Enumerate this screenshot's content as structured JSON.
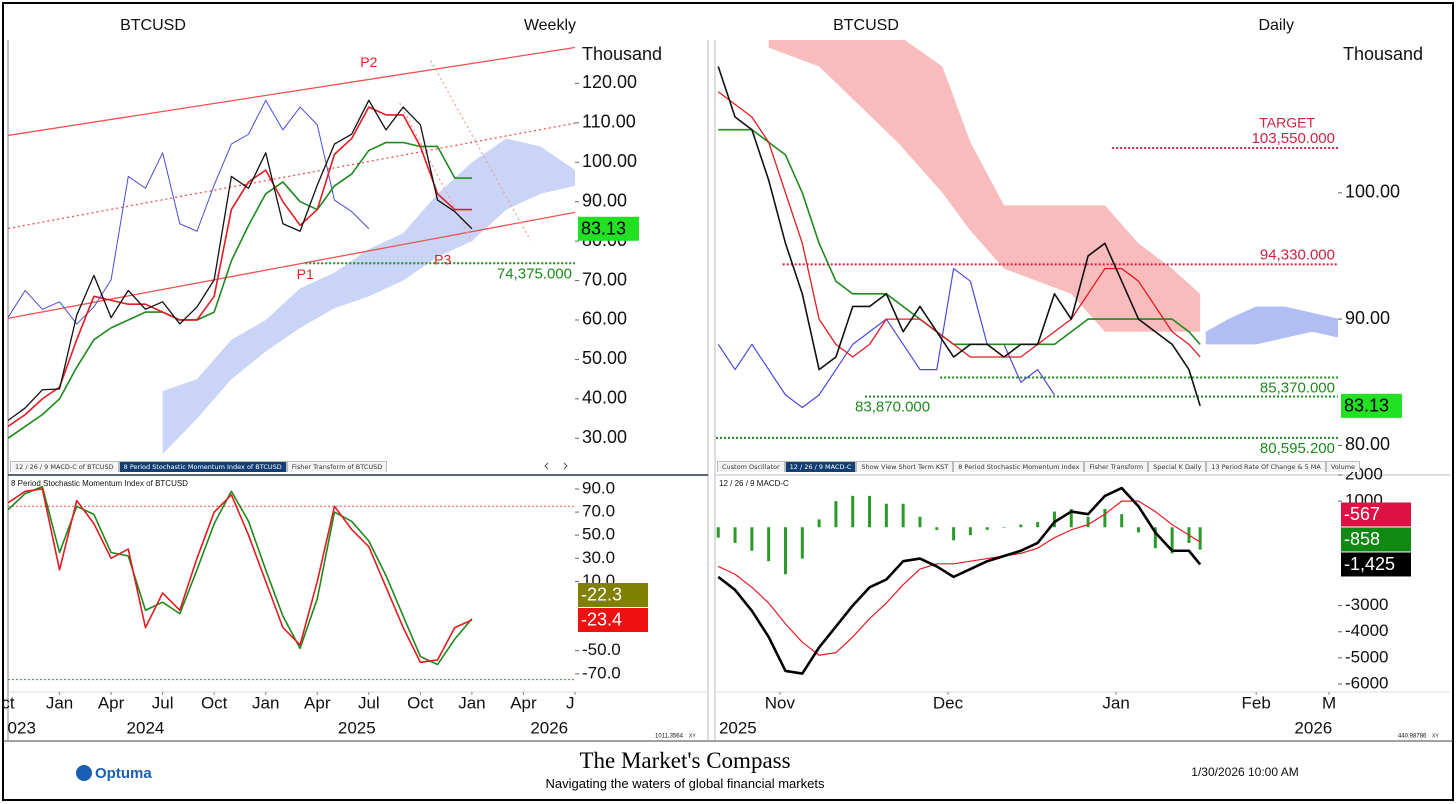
{
  "chart_data": [
    {
      "type": "line",
      "title": "BTCUSD",
      "interval": "Weekly",
      "unit": "Thousand",
      "xlim": [
        0,
        33
      ],
      "ylim": [
        25,
        131
      ],
      "yticks": [
        {
          "value": 30,
          "label": "30.00"
        },
        {
          "value": 40,
          "label": "40.00"
        },
        {
          "value": 50,
          "label": "50.00"
        },
        {
          "value": 60,
          "label": "60.00"
        },
        {
          "value": 70,
          "label": "70.00"
        },
        {
          "value": 80,
          "label": "80.00"
        },
        {
          "value": 90,
          "label": "90.00"
        },
        {
          "value": 100,
          "label": "100.00"
        },
        {
          "value": 110,
          "label": "110.00"
        },
        {
          "value": 120,
          "label": "120.00"
        }
      ],
      "bands": [
        {
          "color": "#c9d4f6",
          "x": [
            9,
            11,
            13,
            15,
            17,
            19,
            21,
            23,
            25,
            27,
            29,
            31,
            33
          ],
          "upper": [
            42,
            45,
            55,
            60,
            68,
            72,
            78,
            82,
            92,
            100,
            106,
            104,
            98
          ],
          "lower": [
            26,
            35,
            45,
            52,
            58,
            63,
            66,
            70,
            76,
            80,
            88,
            92,
            94
          ]
        }
      ],
      "lines": [
        {
          "color": "#f05050",
          "x": [
            0,
            33
          ],
          "y": [
            106.8,
            129.1
          ]
        },
        {
          "color": "#f05050",
          "x": [
            0,
            33
          ],
          "y": [
            83.2,
            109.9
          ],
          "dash": true
        },
        {
          "color": "#f05050",
          "x": [
            0,
            33
          ],
          "y": [
            60.4,
            87.3
          ]
        },
        {
          "color": "#f7a0a0",
          "x": [
            24.6,
            30.4
          ],
          "y": [
            125.8,
            80.2
          ],
          "dash": true
        },
        {
          "color": "#f7a0a0",
          "x": [
            22.8,
            27
          ],
          "y": [
            115,
            80
          ],
          "dash": true
        }
      ],
      "levels": [
        {
          "value": 74.375,
          "label": "74,375.000",
          "color": "#1c8a1c",
          "from": 17.3,
          "label_pos": "below-end"
        }
      ],
      "series": [
        {
          "color": "#4b4bd8",
          "width": 1,
          "values": [
            60.6,
            67.5,
            62.7,
            64.6,
            59,
            63.3,
            70.2,
            96.4,
            93.4,
            102.4,
            84.4,
            82.5,
            94.2,
            104.6,
            107.1,
            115.7,
            108.2,
            114,
            109.5,
            90.4,
            87.5,
            83.13
          ]
        },
        {
          "color": "#1c8a1c",
          "width": 1.6,
          "values": [
            30,
            33,
            36,
            40,
            48,
            55,
            58,
            60,
            62,
            62,
            60,
            60,
            62,
            75,
            84,
            92,
            95,
            90,
            88,
            94,
            97,
            103,
            105,
            105,
            104,
            104,
            96,
            96
          ]
        },
        {
          "color": "#e31b23",
          "width": 1.6,
          "values": [
            33,
            36,
            40,
            43,
            55,
            66,
            65,
            64,
            64,
            62,
            60,
            60,
            66,
            88,
            95,
            98,
            90,
            84,
            88,
            102,
            106,
            114,
            112,
            112,
            104,
            92,
            88,
            88
          ]
        },
        {
          "color": "#111111",
          "width": 1.3,
          "values": [
            34.5,
            37.7,
            42.3,
            42.5,
            61.2,
            71.3,
            60.6,
            67.5,
            62.7,
            64.6,
            59,
            63.3,
            70.2,
            96.4,
            93.4,
            102.4,
            84.4,
            82.5,
            94.2,
            104.6,
            107.1,
            115.7,
            108.2,
            114,
            109.5,
            90.4,
            87.5,
            83.13
          ]
        }
      ],
      "annotations": [
        {
          "text": "P1",
          "x": 17.3,
          "y": 74.4,
          "pos": "below"
        },
        {
          "text": "P2",
          "x": 21,
          "y": 122,
          "pos": "above"
        },
        {
          "text": "P3",
          "x": 25.3,
          "y": 78,
          "pos": "below"
        }
      ],
      "price_labels": [
        {
          "value": 83.13,
          "color": "#22e022",
          "text_color": "#000000"
        }
      ]
    },
    {
      "type": "line",
      "title": "8 Period Stochastic Momentum Index of BTCUSD",
      "xlim": [
        0,
        33
      ],
      "ylim": [
        -84,
        99.5
      ],
      "yticks": [
        {
          "value": 90,
          "label": "90.0"
        },
        {
          "value": 70,
          "label": "70.0"
        },
        {
          "value": 50,
          "label": "50.0"
        },
        {
          "value": 30,
          "label": "30.0"
        },
        {
          "value": 10,
          "label": "10.0"
        },
        {
          "value": -50,
          "label": "-50.0"
        },
        {
          "value": -70,
          "label": "-70.0"
        }
      ],
      "levels": [
        {
          "value": 75,
          "color": "#f05050",
          "from": 0
        },
        {
          "value": -75,
          "color": "#2ca02c",
          "from": 0
        }
      ],
      "series": [
        {
          "color": "#1c8a1c",
          "width": 1.6,
          "values": [
            72,
            86,
            92,
            35,
            75,
            68,
            35,
            32,
            -15,
            -8,
            -18,
            20,
            60,
            88,
            62,
            20,
            -20,
            -48,
            -5,
            70,
            62,
            45,
            15,
            -20,
            -55,
            -62,
            -40,
            -22.3
          ]
        },
        {
          "color": "#e31b23",
          "width": 1.6,
          "values": [
            78,
            88,
            90,
            20,
            80,
            60,
            30,
            38,
            -30,
            0,
            -15,
            30,
            70,
            85,
            50,
            10,
            -30,
            -45,
            10,
            75,
            55,
            40,
            5,
            -30,
            -60,
            -58,
            -30,
            -23.4
          ]
        }
      ],
      "price_labels": [
        {
          "value": -22.3,
          "color": "#7f7f00",
          "text_color": "#ffffff"
        },
        {
          "value": -23.4,
          "color": "#ee1111",
          "text_color": "#ffffff"
        }
      ],
      "xticks": [
        {
          "value": 0,
          "label": "ct"
        },
        {
          "value": 3,
          "label": "Jan"
        },
        {
          "value": 6,
          "label": "Apr"
        },
        {
          "value": 9,
          "label": "Jul"
        },
        {
          "value": 12,
          "label": "Oct"
        },
        {
          "value": 15,
          "label": "Jan"
        },
        {
          "value": 18,
          "label": "Apr"
        },
        {
          "value": 21,
          "label": "Jul"
        },
        {
          "value": 24,
          "label": "Oct"
        },
        {
          "value": 27,
          "label": "Jan"
        },
        {
          "value": 30,
          "label": "Apr"
        },
        {
          "value": 33,
          "label": "Ju"
        }
      ],
      "year_ticks": [
        {
          "value": 0.8,
          "label": "023"
        },
        {
          "value": 8,
          "label": "2024"
        },
        {
          "value": 20.3,
          "label": "2025"
        },
        {
          "value": 31.5,
          "label": "2026"
        }
      ]
    },
    {
      "type": "line",
      "title": "BTCUSD",
      "interval": "Daily",
      "unit": "Thousand",
      "xlim": [
        -11.4,
        99.6
      ],
      "ylim": [
        79,
        112.1
      ],
      "x": [
        -11,
        -8,
        -5,
        -2,
        1,
        4,
        7,
        10,
        13,
        16,
        19,
        22,
        25,
        28,
        31,
        34,
        37,
        40,
        43,
        46,
        49,
        52,
        55,
        58,
        61,
        64,
        67,
        70,
        73,
        75
      ],
      "yticks": [
        {
          "value": 80,
          "label": "80.00"
        },
        {
          "value": 90,
          "label": "90.00"
        },
        {
          "value": 100,
          "label": "100.00"
        }
      ],
      "bands": [
        {
          "color": "#f9bcbc",
          "x": [
            -2,
            7,
            14,
            21,
            29,
            34,
            40,
            46,
            52,
            58,
            64,
            70,
            75
          ],
          "upper": [
            112.5,
            112.5,
            112.5,
            112.5,
            110,
            104,
            99,
            99,
            99,
            99,
            96,
            94,
            92
          ],
          "lower": [
            111.5,
            110,
            107,
            104,
            100,
            97,
            94,
            93,
            92,
            89,
            89,
            89,
            89
          ]
        },
        {
          "color": "#b0bef3",
          "x": [
            76,
            80,
            85,
            90,
            95,
            100
          ],
          "upper": [
            89,
            90,
            91,
            91,
            90.5,
            90
          ],
          "lower": [
            88,
            88,
            88,
            88.5,
            89,
            88.5
          ]
        }
      ],
      "levels": [
        {
          "value": 103.55,
          "label": "103,550.000",
          "note": "TARGET",
          "color": "#cc2244",
          "from": 59.3,
          "label_pos": "above-end"
        },
        {
          "value": 94.33,
          "label": "94,330.000",
          "color": "#cc2244",
          "from": 0.5,
          "label_pos": "above-end"
        },
        {
          "value": 85.37,
          "label": "85,370.000",
          "color": "#1c8a1c",
          "from": 28.6,
          "label_pos": "below-end"
        },
        {
          "value": 83.87,
          "label": "83,870.000",
          "color": "#1c8a1c",
          "from": 15.2,
          "label_pos": "below-start"
        },
        {
          "value": 80.595,
          "label": "80,595.200",
          "color": "#1c8a1c",
          "from": -11.4,
          "label_pos": "below-end"
        }
      ],
      "series": [
        {
          "color": "#4b4bd8",
          "width": 1.2,
          "values": [
            88,
            86,
            88,
            86,
            84,
            83,
            84,
            86,
            88,
            89,
            90,
            88,
            86,
            86,
            94,
            93,
            88,
            88,
            85,
            86,
            84,
            null,
            null,
            null,
            null,
            null,
            null,
            null,
            null,
            null
          ]
        },
        {
          "color": "#1c8a1c",
          "width": 1.6,
          "values": [
            105,
            105,
            105,
            104,
            103,
            100,
            96,
            93,
            92,
            92,
            92,
            91,
            90,
            89,
            88,
            88,
            88,
            88,
            88,
            88,
            88,
            89,
            90,
            90,
            90,
            90,
            90,
            90,
            89,
            88
          ]
        },
        {
          "color": "#e31b23",
          "width": 1.3,
          "values": [
            108,
            107,
            106,
            104,
            100,
            96,
            90,
            88,
            87,
            88,
            90,
            90,
            90,
            89,
            88,
            87,
            87,
            87,
            87,
            88,
            89,
            90,
            92,
            94,
            94,
            93,
            91,
            89,
            88,
            87
          ]
        },
        {
          "color": "#111111",
          "width": 1.6,
          "values": [
            110,
            106,
            105,
            101,
            96,
            92,
            86,
            87,
            91,
            91,
            92,
            89,
            91,
            89,
            87,
            88,
            88,
            87,
            88,
            88,
            92,
            90,
            95,
            96,
            93,
            90,
            89,
            88,
            86,
            83.13
          ]
        }
      ],
      "price_labels": [
        {
          "value": 83.13,
          "color": "#22e022",
          "text_color": "#000000"
        }
      ]
    },
    {
      "type": "line",
      "title": "12 / 26 / 9 MACD-C",
      "xlim": [
        -11.4,
        99.6
      ],
      "ylim": [
        -6230,
        1885
      ],
      "x": [
        -11,
        -8,
        -5,
        -2,
        1,
        4,
        7,
        10,
        13,
        16,
        19,
        22,
        25,
        28,
        31,
        34,
        37,
        40,
        43,
        46,
        49,
        52,
        55,
        58,
        61,
        64,
        67,
        70,
        73,
        75
      ],
      "yticks": [
        2000,
        1000,
        -3000,
        -4000,
        -5000,
        -6000
      ],
      "series": [
        {
          "kind": "bar",
          "color": "#2a9a2a",
          "values": [
            -400,
            -600,
            -900,
            -1300,
            -1800,
            -1200,
            300,
            1000,
            1200,
            1200,
            900,
            900,
            400,
            -100,
            -500,
            -300,
            -100,
            0,
            100,
            200,
            600,
            700,
            400,
            700,
            500,
            -200,
            -800,
            -1000,
            -600,
            -858
          ]
        },
        {
          "color": "#e31b23",
          "width": 1.2,
          "values": [
            -1500,
            -1800,
            -2300,
            -2900,
            -3700,
            -4400,
            -4900,
            -4800,
            -4200,
            -3500,
            -2900,
            -2200,
            -1600,
            -1400,
            -1400,
            -1300,
            -1200,
            -1100,
            -1000,
            -800,
            -400,
            -100,
            100,
            500,
            1000,
            1000,
            600,
            100,
            -300,
            -567
          ]
        },
        {
          "color": "#000000",
          "width": 2.6,
          "values": [
            -1900,
            -2400,
            -3200,
            -4200,
            -5500,
            -5600,
            -4600,
            -3800,
            -3000,
            -2300,
            -2000,
            -1300,
            -1200,
            -1500,
            -1900,
            -1600,
            -1300,
            -1100,
            -900,
            -600,
            200,
            600,
            500,
            1200,
            1500,
            800,
            -200,
            -900,
            -900,
            -1425
          ]
        }
      ],
      "price_labels": [
        {
          "value": -567,
          "color": "#dd1144",
          "text_color": "#ffffff"
        },
        {
          "value": -858,
          "color": "#118811",
          "text_color": "#ffffff"
        },
        {
          "value": -1425,
          "label": "-1,425",
          "color": "#000000",
          "text_color": "#ffffff"
        }
      ],
      "xticks": [
        {
          "value": 0,
          "label": "Nov"
        },
        {
          "value": 30,
          "label": "Dec"
        },
        {
          "value": 60,
          "label": "Jan"
        },
        {
          "value": 85,
          "label": "Feb"
        },
        {
          "value": 98,
          "label": "M"
        }
      ],
      "year_ticks": [
        {
          "value": -7.5,
          "label": "2025"
        },
        {
          "value": 95.2,
          "label": "2026"
        }
      ]
    }
  ],
  "tabs": [
    {
      "items": [
        "12 / 26 / 9 MACD-C of BTCUSD",
        "8 Period Stochastic Momentum Index of BTCUSD",
        "Fisher Transform of BTCUSD"
      ],
      "active": 1
    },
    {
      "items": [
        "Custom Oscillator",
        "12 / 26 / 9 MACD-C",
        "Show View Short Term KST",
        "8 Period Stochastic Momentum Index",
        "Fisher Transform",
        "Special K Daily",
        "13 Period Rate Of Change & 5 MA",
        "Volume"
      ],
      "active": 1
    }
  ],
  "scale_readouts": [
    {
      "value": 1011.3564,
      "mode": "XY"
    },
    {
      "value": 440.98786,
      "mode": "XY"
    }
  ],
  "footer": {
    "logo": "Optuma",
    "brand": "The Market's Compass",
    "tagline": "Navigating the waters of global financial markets",
    "timestamp": "1/30/2026 10:00 AM"
  }
}
